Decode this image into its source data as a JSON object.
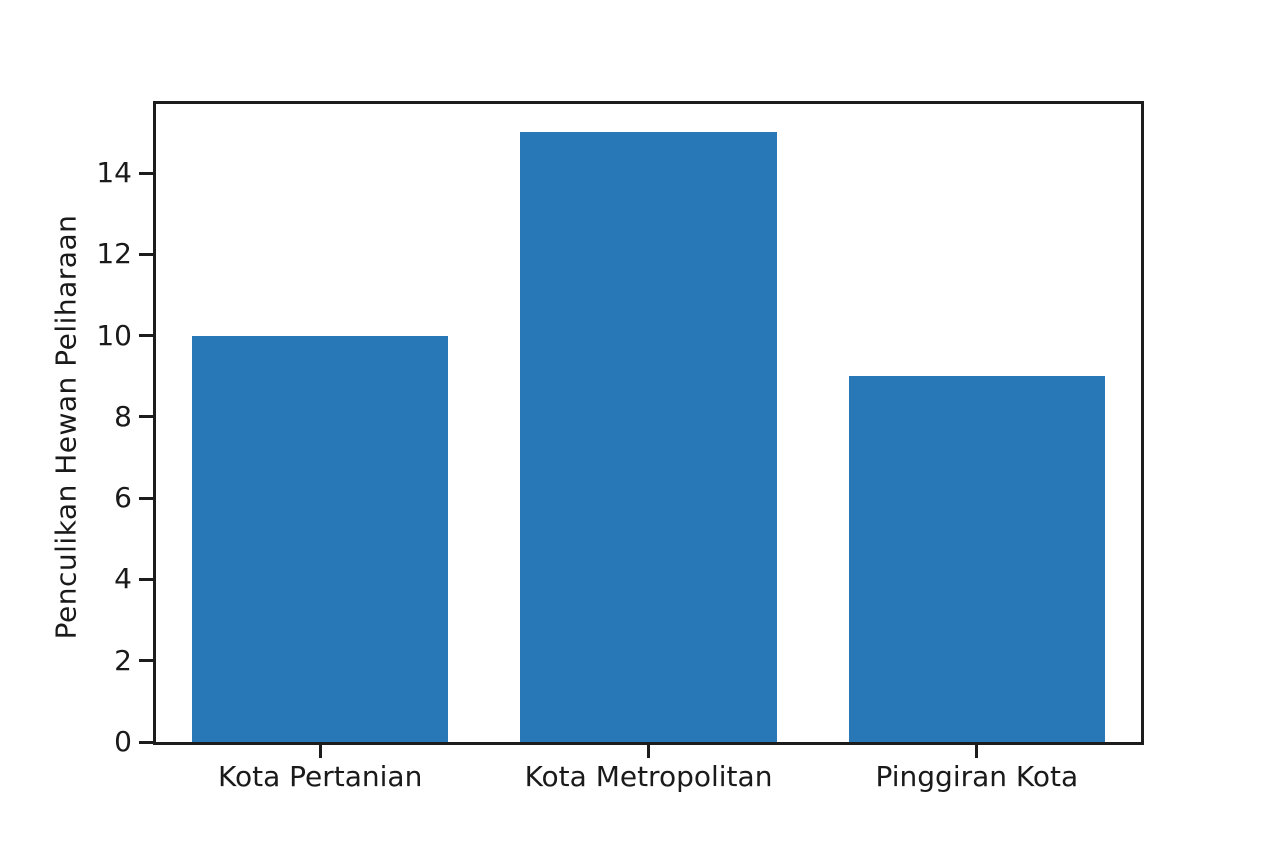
{
  "figure": {
    "background": "#ffffff"
  },
  "chart_data": {
    "type": "bar",
    "title": "",
    "categories": [
      "Kota Pertanian",
      "Kota Metropolitan",
      "Pinggiran Kota"
    ],
    "values": [
      10,
      15,
      9
    ],
    "xlabel": "",
    "ylabel": "Penculikan Hewan Peliharaan",
    "ylim": [
      0,
      15.7
    ],
    "yticks": [
      0,
      2,
      4,
      6,
      8,
      10,
      12,
      14
    ],
    "bar_color": "#2878b8",
    "axis_color": "#1c1c1c",
    "text_color": "#1a1a1a",
    "grid": false,
    "legend": null,
    "bar_width_fraction": 0.78
  }
}
